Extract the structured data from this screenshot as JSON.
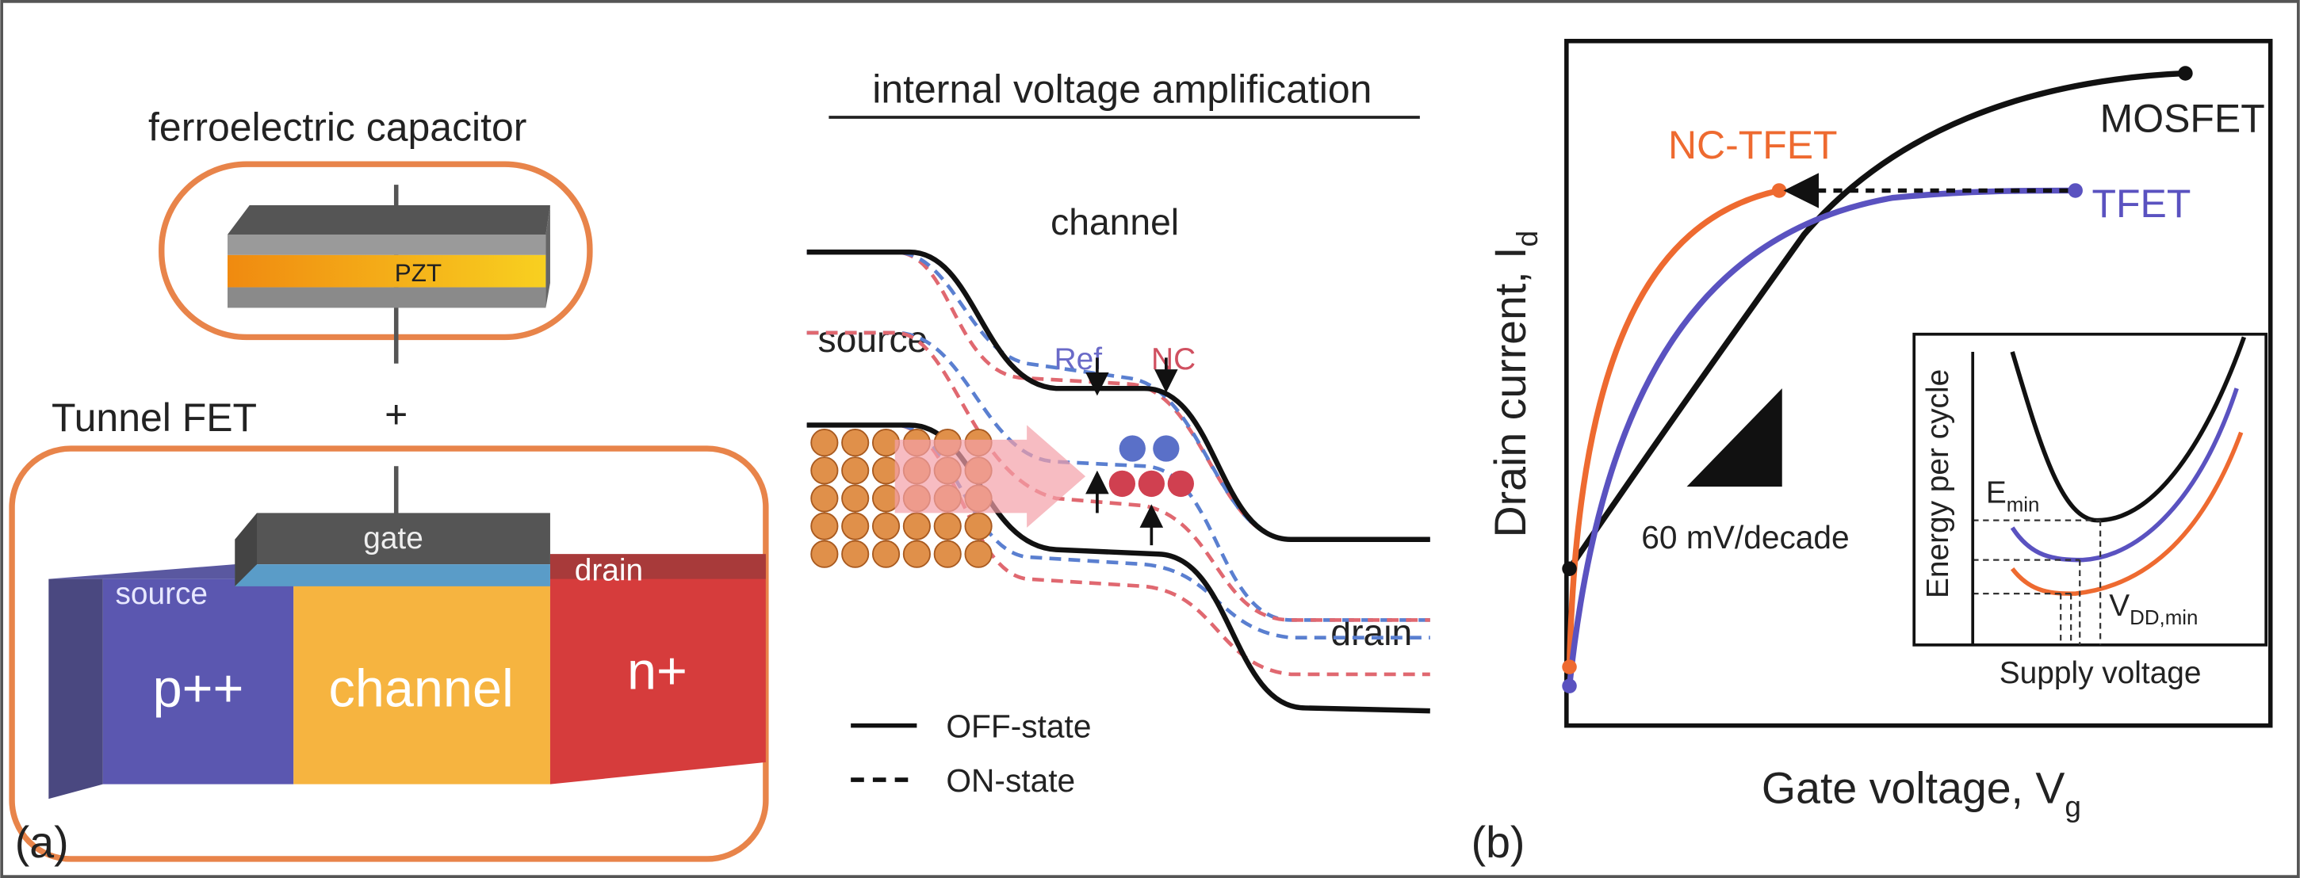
{
  "panel_a": {
    "label": "(a)",
    "capacitor_title": "ferroelectric capacitor",
    "pzt": "PZT",
    "plus": "+",
    "tfet_title": "Tunnel FET",
    "gate": "gate",
    "source": "source",
    "drain": "drain",
    "p_region": "p++",
    "channel": "channel",
    "n_region": "n+"
  },
  "band_diagram": {
    "title": "internal voltage amplification",
    "channel": "channel",
    "source": "source",
    "drain": "drain",
    "ref": "Ref",
    "nc": "NC",
    "legend": [
      "OFF-state",
      "ON-state"
    ]
  },
  "panel_b": {
    "label": "(b)",
    "y_axis": {
      "text": "Drain current, I",
      "sub": "d"
    },
    "x_axis": {
      "text": "Gate voltage, V",
      "sub": "g"
    },
    "curves": [
      "MOSFET",
      "NC-TFET",
      "TFET"
    ],
    "slope": "60 mV/decade",
    "inset": {
      "y_axis": "Energy per cycle",
      "x_axis": "Supply voltage",
      "e_min": {
        "text": "E",
        "sub": "min"
      },
      "v_dd_min": {
        "text": "V",
        "sub": "DD,min"
      }
    }
  }
}
